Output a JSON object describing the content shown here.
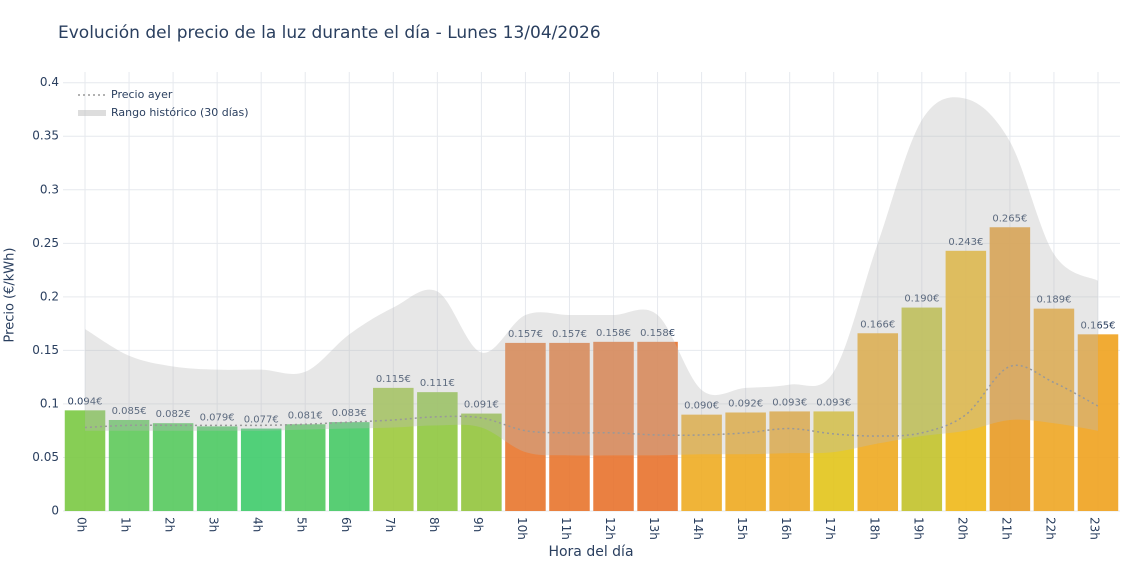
{
  "chart_data": {
    "type": "bar",
    "title": "Evolución del precio de la luz durante el día - Lunes 13/04/2026",
    "x_label": "Hora del día",
    "y_label": "Precio (€/kWh)",
    "categories": [
      "0h",
      "1h",
      "2h",
      "3h",
      "4h",
      "5h",
      "6h",
      "7h",
      "8h",
      "9h",
      "10h",
      "11h",
      "12h",
      "13h",
      "14h",
      "15h",
      "16h",
      "17h",
      "18h",
      "19h",
      "20h",
      "21h",
      "22h",
      "23h"
    ],
    "values": [
      0.094,
      0.085,
      0.082,
      0.079,
      0.077,
      0.081,
      0.083,
      0.115,
      0.111,
      0.091,
      0.157,
      0.157,
      0.158,
      0.158,
      0.09,
      0.092,
      0.093,
      0.093,
      0.166,
      0.19,
      0.243,
      0.265,
      0.189,
      0.165
    ],
    "value_labels": [
      "0.094€",
      "0.085€",
      "0.082€",
      "0.079€",
      "0.077€",
      "0.081€",
      "0.083€",
      "0.115€",
      "0.111€",
      "0.091€",
      "0.157€",
      "0.157€",
      "0.158€",
      "0.158€",
      "0.090€",
      "0.092€",
      "0.093€",
      "0.093€",
      "0.166€",
      "0.190€",
      "0.243€",
      "0.265€",
      "0.189€",
      "0.165€"
    ],
    "colors": [
      "#7ac943",
      "#5ec95a",
      "#55c95d",
      "#4bc962",
      "#3ecb6a",
      "#52c95e",
      "#46c965",
      "#9cc93c",
      "#8ec63e",
      "#92c43c",
      "#e8752c",
      "#e8742c",
      "#e8722c",
      "#e8722c",
      "#eeac22",
      "#eeaa20",
      "#eca624",
      "#e2c41a",
      "#eeaa20",
      "#c2c22a",
      "#f0b818",
      "#e89a24",
      "#eea624",
      "#f0a21e"
    ],
    "ylim": [
      0,
      0.41
    ],
    "yticks": [
      0,
      0.05,
      0.1,
      0.15,
      0.2,
      0.25,
      0.3,
      0.35,
      0.4
    ],
    "grid": true,
    "line": {
      "name": "Precio ayer",
      "color": "#999999",
      "values": [
        0.078,
        0.08,
        0.08,
        0.08,
        0.08,
        0.081,
        0.083,
        0.085,
        0.088,
        0.087,
        0.075,
        0.073,
        0.073,
        0.071,
        0.071,
        0.073,
        0.077,
        0.072,
        0.07,
        0.073,
        0.09,
        0.135,
        0.12,
        0.098
      ]
    },
    "range": {
      "name": "Rango histórico (30 días)",
      "color": "#bbbbbb",
      "upper": [
        0.17,
        0.145,
        0.135,
        0.132,
        0.132,
        0.13,
        0.165,
        0.19,
        0.205,
        0.148,
        0.183,
        0.183,
        0.183,
        0.183,
        0.113,
        0.115,
        0.118,
        0.13,
        0.25,
        0.365,
        0.385,
        0.345,
        0.24,
        0.215
      ],
      "lower": [
        0.075,
        0.075,
        0.075,
        0.075,
        0.075,
        0.076,
        0.077,
        0.078,
        0.08,
        0.078,
        0.055,
        0.052,
        0.052,
        0.052,
        0.053,
        0.053,
        0.054,
        0.055,
        0.063,
        0.07,
        0.075,
        0.085,
        0.082,
        0.075
      ]
    },
    "legend": "top-left"
  }
}
